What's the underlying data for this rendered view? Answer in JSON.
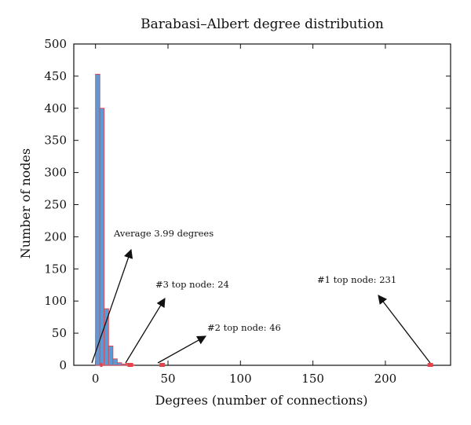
{
  "chart_data": {
    "type": "bar",
    "title": "Barabasi–Albert degree distribution",
    "xlabel": "Degrees (number of connections)",
    "ylabel": "Number of nodes",
    "xlim": [
      -15,
      245
    ],
    "ylim": [
      0,
      500
    ],
    "xticks": [
      0,
      50,
      100,
      150,
      200
    ],
    "yticks": [
      0,
      50,
      100,
      150,
      200,
      250,
      300,
      350,
      400,
      450,
      500
    ],
    "bin_width": 3,
    "bins": [
      {
        "start": 0,
        "value": 453
      },
      {
        "start": 3,
        "value": 400
      },
      {
        "start": 6,
        "value": 88
      },
      {
        "start": 9,
        "value": 30
      },
      {
        "start": 12,
        "value": 10
      },
      {
        "start": 15,
        "value": 4
      },
      {
        "start": 18,
        "value": 2
      },
      {
        "start": 21,
        "value": 3
      },
      {
        "start": 24,
        "value": 1
      }
    ],
    "markers": [
      {
        "x": 3.99,
        "y": 0
      },
      {
        "x": 24,
        "y": 0
      },
      {
        "x": 46,
        "y": 0
      },
      {
        "x": 231,
        "y": 0
      }
    ],
    "annotations": [
      {
        "text": "Average 3.99 degrees",
        "x": 3.99
      },
      {
        "text": "#3 top node: 24",
        "x": 24
      },
      {
        "text": "#2 top node: 46",
        "x": 46
      },
      {
        "text": "#1 top node: 231",
        "x": 231
      }
    ],
    "colors": {
      "bar_fill": "#5b9bd5",
      "bar_edge": "#e8414a",
      "marker": "#e8414a",
      "arrow": "#111111"
    },
    "grid": false,
    "legend": "none"
  }
}
